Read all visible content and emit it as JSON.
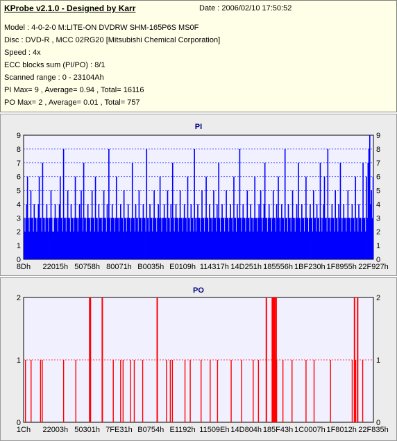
{
  "header": {
    "title": "KProbe v2.1.0 - Designed by Karr",
    "date": "Date : 2006/02/10 17:50:52",
    "lines": [
      "Model : 4-0-2-0 M:LITE-ON DVDRW SHM-165P6S MS0F",
      "Disc : DVD-R , MCC 02RG20   [Mitsubishi Chemical Corporation]",
      "Speed : 4x",
      "ECC blocks sum (PI/PO) : 8/1",
      "Scanned range : 0 - 23104Ah",
      "PI Max= 9 , Average= 0.94 , Total= 16116",
      "PO Max= 2 , Average= 0.01 , Total= 757"
    ]
  },
  "colors": {
    "pi_bars": "#0000ff",
    "po_bars": "#ff0000",
    "plot_bg": "#f0f0ff",
    "panel_bg": "#ececec",
    "title": "#000080",
    "info_bg": "#ffffe8"
  },
  "chart_data": [
    {
      "type": "bar",
      "title": "PI",
      "ylim": [
        0,
        9
      ],
      "yticks": [
        0,
        1,
        2,
        3,
        4,
        5,
        6,
        7,
        8,
        9
      ],
      "x_tick_labels": [
        "8Dh",
        "22015h",
        "50758h",
        "80071h",
        "B0035h",
        "E0109h",
        "114317h",
        "14D251h",
        "185556h",
        "1BF230h",
        "1F8955h",
        "22F927h"
      ],
      "grid": "dotted",
      "values": [
        3,
        2,
        3,
        4,
        6,
        3,
        2,
        3,
        5,
        3,
        3,
        2,
        4,
        3,
        3,
        2,
        3,
        4,
        6,
        3,
        3,
        2,
        7,
        3,
        3,
        2,
        3,
        4,
        3,
        2,
        3,
        3,
        5,
        3,
        2,
        2,
        3,
        4,
        3,
        3,
        2,
        3,
        4,
        6,
        3,
        3,
        2,
        8,
        3,
        3,
        2,
        3,
        5,
        3,
        3,
        2,
        4,
        3,
        3,
        2,
        3,
        6,
        3,
        3,
        2,
        3,
        4,
        3,
        5,
        3,
        2,
        7,
        3,
        3,
        2,
        3,
        4,
        3,
        3,
        2,
        3,
        5,
        3,
        3,
        2,
        6,
        3,
        3,
        2,
        4,
        3,
        3,
        3,
        2,
        3,
        5,
        3,
        3,
        2,
        4,
        3,
        8,
        3,
        2,
        3,
        4,
        3,
        3,
        2,
        3,
        6,
        3,
        3,
        2,
        3,
        4,
        3,
        3,
        2,
        5,
        3,
        3,
        2,
        3,
        4,
        3,
        3,
        2,
        3,
        7,
        3,
        3,
        2,
        4,
        3,
        3,
        2,
        5,
        3,
        3,
        2,
        3,
        4,
        3,
        3,
        2,
        8,
        3,
        3,
        2,
        4,
        3,
        3,
        2,
        3,
        5,
        3,
        3,
        2,
        3,
        4,
        3,
        6,
        3,
        2,
        3,
        3,
        4,
        3,
        3,
        2,
        5,
        3,
        3,
        2,
        4,
        3,
        7,
        3,
        2,
        3,
        4,
        3,
        3,
        2,
        3,
        5,
        3,
        3,
        2,
        3,
        4,
        3,
        3,
        2,
        6,
        3,
        3,
        2,
        4,
        3,
        3,
        2,
        8,
        3,
        2,
        3,
        4,
        3,
        3,
        2,
        3,
        5,
        3,
        3,
        2,
        3,
        6,
        3,
        3,
        2,
        4,
        3,
        3,
        2,
        3,
        5,
        3,
        3,
        2,
        4,
        3,
        7,
        3,
        2,
        3,
        4,
        3,
        3,
        2,
        3,
        5,
        3,
        3,
        2,
        3,
        4,
        3,
        3,
        2,
        6,
        3,
        3,
        2,
        4,
        3,
        3,
        8,
        3,
        2,
        3,
        4,
        3,
        3,
        2,
        3,
        5,
        3,
        3,
        2,
        4,
        3,
        3,
        2,
        3,
        6,
        3,
        3,
        2,
        3,
        4,
        3,
        5,
        3,
        2,
        3,
        4,
        7,
        3,
        3,
        2,
        3,
        4,
        3,
        3,
        2,
        3,
        5,
        3,
        3,
        2,
        4,
        3,
        6,
        3,
        2,
        3,
        4,
        3,
        3,
        2,
        8,
        3,
        3,
        2,
        4,
        3,
        3,
        2,
        3,
        5,
        3,
        3,
        2,
        3,
        4,
        3,
        7,
        3,
        2,
        3,
        4,
        3,
        3,
        2,
        3,
        6,
        3,
        3,
        2,
        3,
        4,
        3,
        3,
        2,
        5,
        3,
        3,
        2,
        4,
        3,
        3,
        2,
        7,
        3,
        2,
        3,
        4,
        6,
        3,
        3,
        2,
        8,
        3,
        3,
        2,
        3,
        4,
        3,
        3,
        2,
        5,
        3,
        3,
        2,
        4,
        3,
        7,
        3,
        2,
        3,
        4,
        3,
        3,
        2,
        3,
        5,
        3,
        3,
        2,
        3,
        4,
        3,
        3,
        2,
        6,
        3,
        3,
        2,
        4,
        3,
        3,
        2,
        3,
        7,
        3,
        3,
        2,
        6,
        3,
        7,
        8,
        9,
        4,
        5,
        3,
        6
      ]
    },
    {
      "type": "bar",
      "title": "PO",
      "ylim": [
        0,
        2
      ],
      "yticks": [
        0,
        1,
        2
      ],
      "x_tick_labels": [
        "1Ch",
        "22003h",
        "50301h",
        "7FE31h",
        "B0754h",
        "E1192h",
        "11509Eh",
        "14D804h",
        "185F43h",
        "1C0007h",
        "1F8012h",
        "22F835h"
      ],
      "grid": "dotted",
      "nonzero_positions": [
        0.004,
        0.02,
        0.047,
        0.052,
        0.113,
        0.148,
        0.187,
        0.188,
        0.189,
        0.223,
        0.255,
        0.276,
        0.283,
        0.304,
        0.315,
        0.339,
        0.38,
        0.407,
        0.418,
        0.424,
        0.46,
        0.475,
        0.506,
        0.532,
        0.553,
        0.592,
        0.622,
        0.655,
        0.67,
        0.692,
        0.709,
        0.711,
        0.713,
        0.715,
        0.716,
        0.718,
        0.72,
        0.722,
        0.74,
        0.766,
        0.806,
        0.829,
        0.876,
        0.938,
        0.944,
        0.948,
        0.953,
        0.968
      ],
      "nonzero_values": [
        1,
        1,
        1,
        1,
        1,
        1,
        2,
        2,
        2,
        2,
        1,
        1,
        1,
        1,
        1,
        1,
        2,
        1,
        1,
        1,
        1,
        1,
        1,
        1,
        1,
        1,
        1,
        1,
        1,
        2,
        2,
        2,
        2,
        2,
        2,
        1,
        2,
        1,
        1,
        1,
        1,
        1,
        1,
        1,
        2,
        1,
        2,
        1
      ]
    }
  ]
}
